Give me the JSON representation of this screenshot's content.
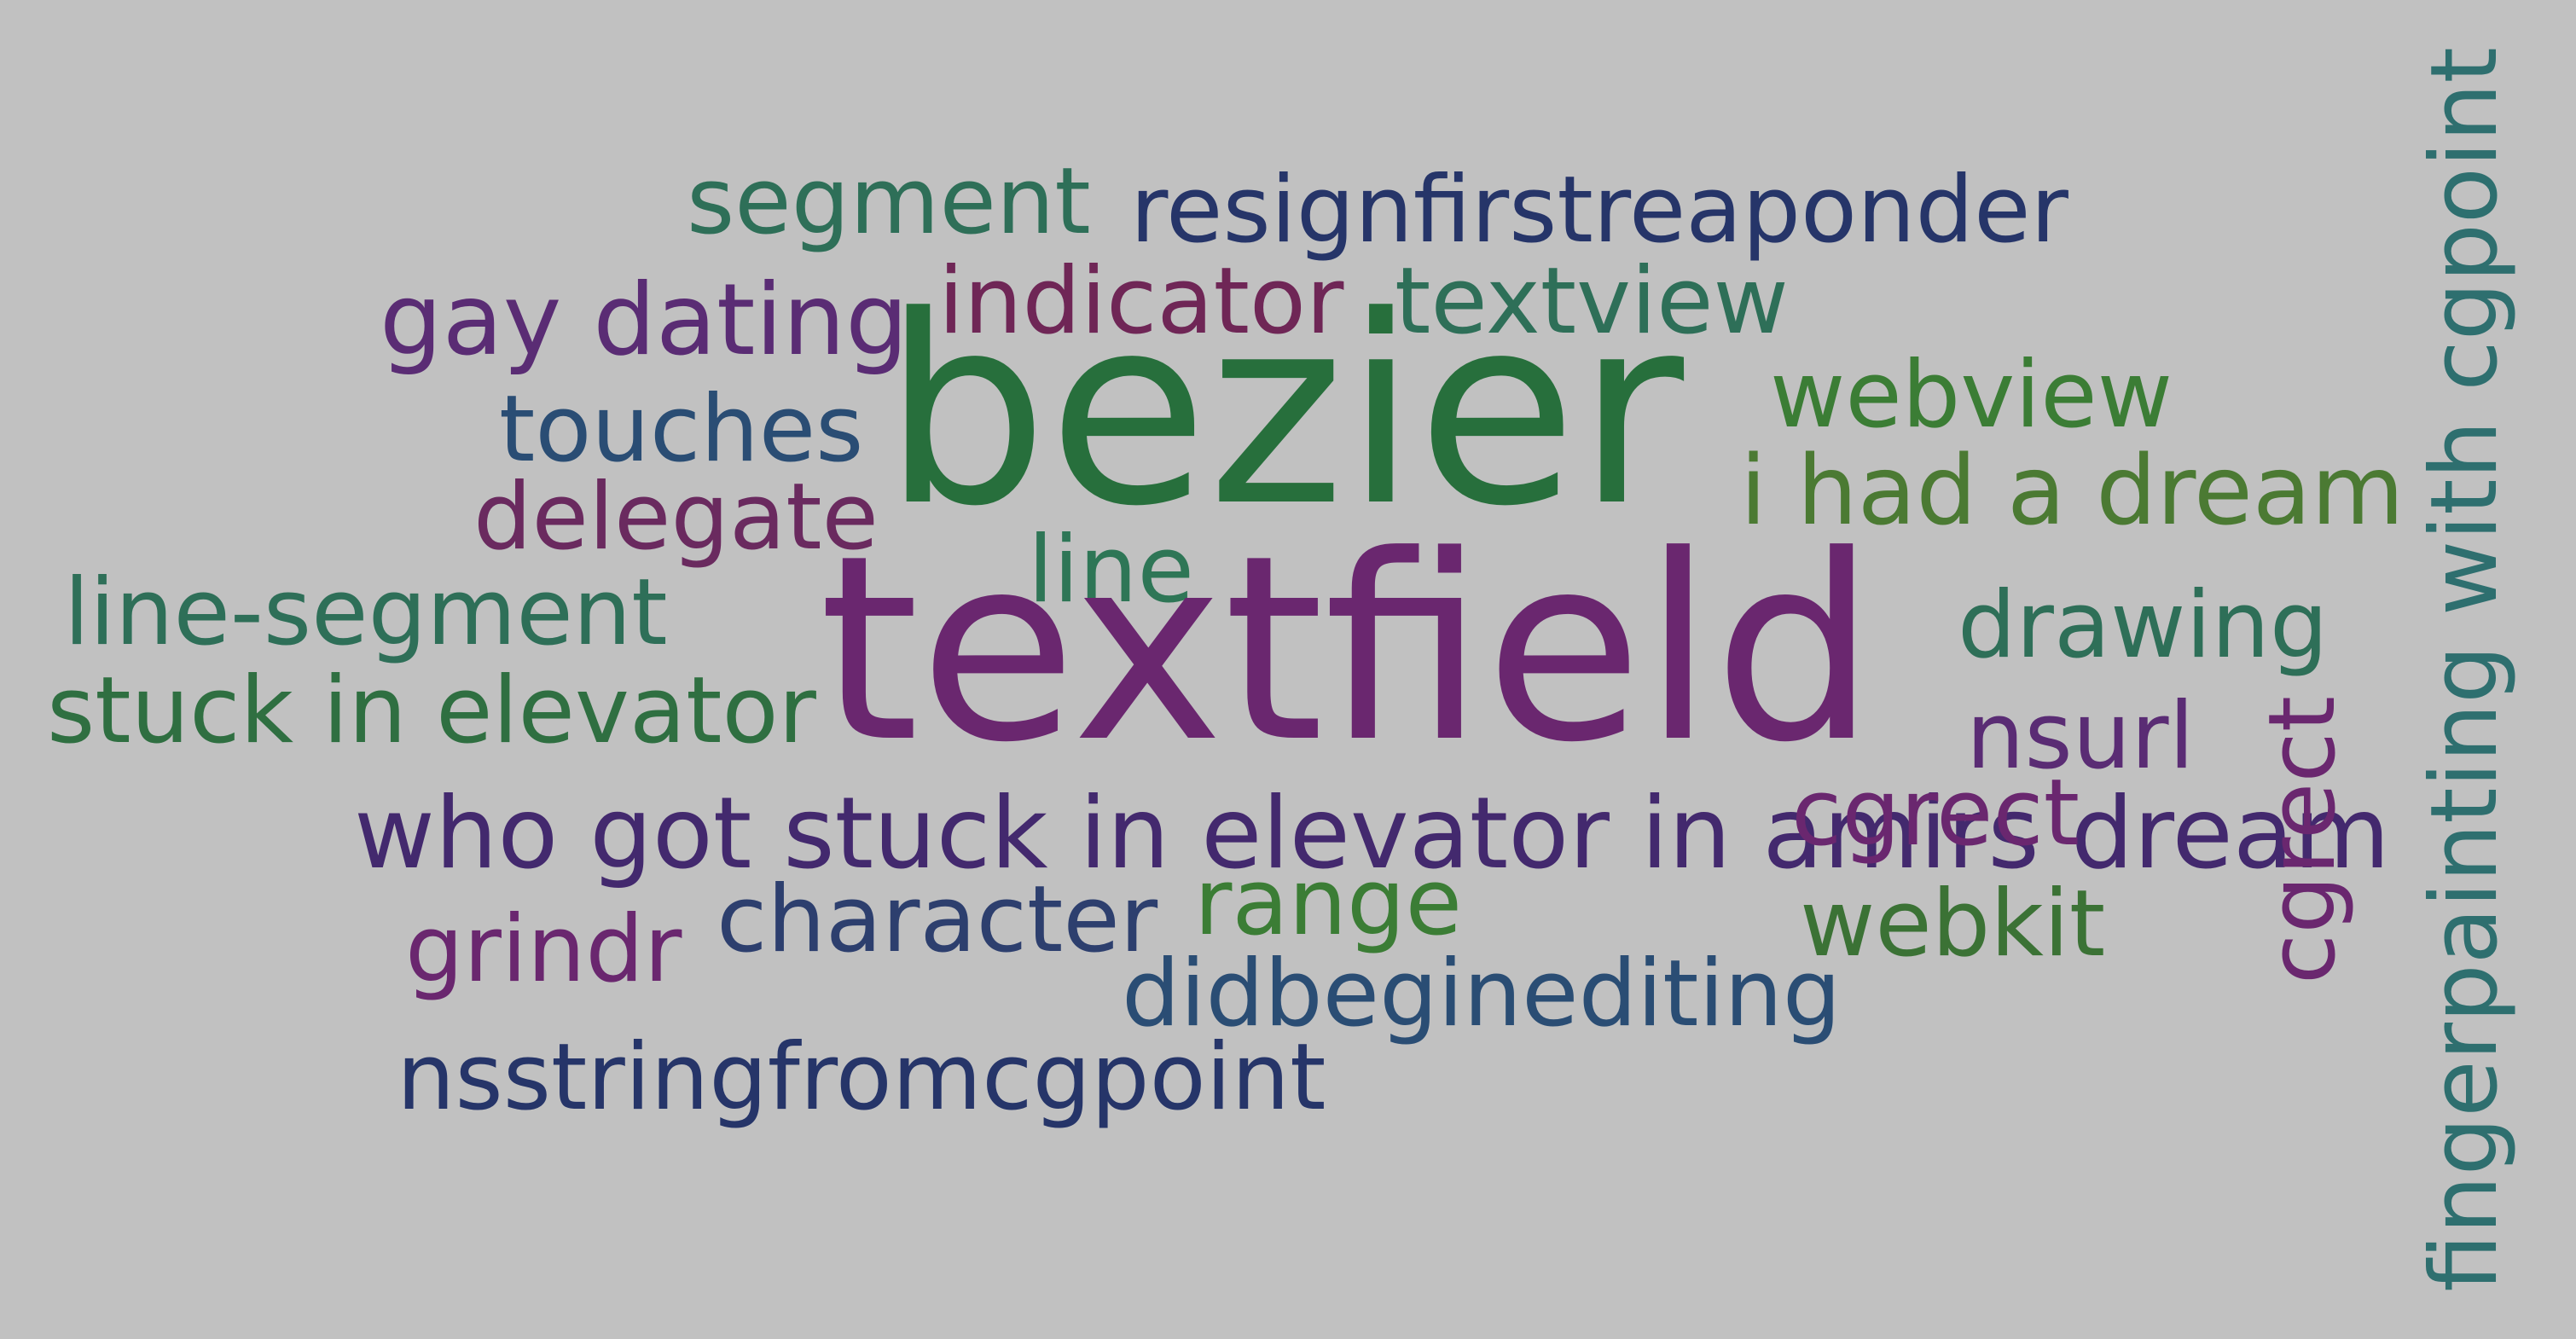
{
  "words": [
    {
      "text": "segment",
      "color": "#2e6f58"
    },
    {
      "text": "resignfirstreaponder",
      "color": "#263569"
    },
    {
      "text": "gay dating",
      "color": "#5a2c74"
    },
    {
      "text": "indicator",
      "color": "#6f2656"
    },
    {
      "text": "textview",
      "color": "#2e6f58"
    },
    {
      "text": "bezier",
      "color": "#276f3c"
    },
    {
      "text": "webview",
      "color": "#3b7d35"
    },
    {
      "text": "touches",
      "color": "#2a4d74"
    },
    {
      "text": "i had a dream",
      "color": "#4b7a33"
    },
    {
      "text": "delegate",
      "color": "#6a2a5f"
    },
    {
      "text": "line",
      "color": "#2e7656"
    },
    {
      "text": "line-segment",
      "color": "#2e6f58"
    },
    {
      "text": "textfield",
      "color": "#6a276f"
    },
    {
      "text": "drawing",
      "color": "#2e6f58"
    },
    {
      "text": "stuck in elevator",
      "color": "#2f6f41"
    },
    {
      "text": "nsurl",
      "color": "#5a2c74"
    },
    {
      "text": "who got stuck in elevator in amirs dream",
      "color": "#43296e"
    },
    {
      "text": "cgrect",
      "color": "#6a276f"
    },
    {
      "text": "character",
      "color": "#2d3f6e"
    },
    {
      "text": "range",
      "color": "#3b7d35"
    },
    {
      "text": "grindr",
      "color": "#6a276f"
    },
    {
      "text": "webkit",
      "color": "#3b7235"
    },
    {
      "text": "didbeginediting",
      "color": "#2a4d74"
    },
    {
      "text": "nsstringfromcgpoint",
      "color": "#263569"
    },
    {
      "text": "fingerpainting with cgpoint",
      "color": "#2e6f6f"
    }
  ]
}
